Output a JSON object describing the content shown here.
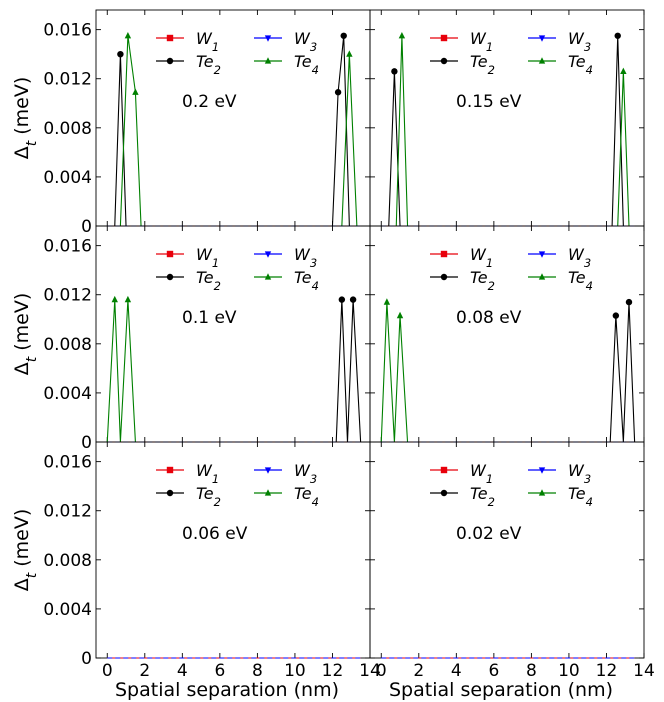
{
  "figure": {
    "ylabel_main": "Δ",
    "ylabel_sub": "t",
    "ylabel_unit": " (meV)",
    "xlabel": "Spatial separation (nm)"
  },
  "colors": {
    "W1": "#e8000b",
    "Te2": "#000000",
    "W3": "#0000ff",
    "Te4": "#008000"
  },
  "legend": [
    {
      "key": "W1",
      "base": "W",
      "sub": "1",
      "marker": "square"
    },
    {
      "key": "W3",
      "base": "W",
      "sub": "3",
      "marker": "tri-down"
    },
    {
      "key": "Te2",
      "base": "Te",
      "sub": "2",
      "marker": "circle"
    },
    {
      "key": "Te4",
      "base": "Te",
      "sub": "4",
      "marker": "tri-up"
    }
  ],
  "axes": {
    "xlim": [
      -0.6,
      14
    ],
    "ylim": [
      0,
      0.0176
    ],
    "xticks": [
      0,
      2,
      4,
      6,
      8,
      10,
      12,
      14
    ],
    "yticks": [
      0,
      0.004,
      0.008,
      0.012,
      0.016
    ],
    "ytick_labels": [
      "0",
      "0.004",
      "0.008",
      "0.012",
      "0.016"
    ]
  },
  "chart_data": [
    {
      "type": "line",
      "annotation": "0.2 eV",
      "series": [
        {
          "name": "W1",
          "x": [
            0,
            13.5
          ],
          "y": [
            0,
            0
          ]
        },
        {
          "name": "Te2",
          "x": [
            0,
            0.4,
            0.7,
            1.0,
            12.0,
            12.3,
            12.6,
            12.9,
            13.5
          ],
          "y": [
            0,
            0,
            0.014,
            0,
            0,
            0.0109,
            0.0155,
            0,
            0
          ]
        },
        {
          "name": "W3",
          "x": [
            0,
            13.5
          ],
          "y": [
            0,
            0
          ]
        },
        {
          "name": "Te4",
          "x": [
            0,
            0.7,
            1.1,
            1.5,
            1.8,
            12.5,
            12.9,
            13.3,
            13.5
          ],
          "y": [
            0,
            0,
            0.0155,
            0.0109,
            0,
            0,
            0.014,
            0,
            0
          ]
        }
      ]
    },
    {
      "type": "line",
      "annotation": "0.15 eV",
      "series": [
        {
          "name": "W1",
          "x": [
            0,
            13.5
          ],
          "y": [
            0,
            0
          ]
        },
        {
          "name": "Te2",
          "x": [
            0,
            0.4,
            0.7,
            1.0,
            12.3,
            12.6,
            12.9,
            13.5
          ],
          "y": [
            0,
            0,
            0.0126,
            0,
            0,
            0.0155,
            0,
            0
          ]
        },
        {
          "name": "W3",
          "x": [
            0,
            13.5
          ],
          "y": [
            0,
            0
          ]
        },
        {
          "name": "Te4",
          "x": [
            0,
            0.8,
            1.1,
            1.4,
            12.6,
            12.9,
            13.2,
            13.5
          ],
          "y": [
            0,
            0,
            0.0155,
            0,
            0,
            0.0126,
            0,
            0
          ]
        }
      ]
    },
    {
      "type": "line",
      "annotation": "0.1 eV",
      "series": [
        {
          "name": "W1",
          "x": [
            0,
            13.5
          ],
          "y": [
            0,
            0
          ]
        },
        {
          "name": "Te2",
          "x": [
            0,
            12.2,
            12.5,
            12.8,
            13.1,
            13.5
          ],
          "y": [
            0,
            0,
            0.0116,
            0,
            0.0116,
            0
          ]
        },
        {
          "name": "W3",
          "x": [
            0,
            13.5
          ],
          "y": [
            0,
            0
          ]
        },
        {
          "name": "Te4",
          "x": [
            0,
            0.4,
            0.7,
            1.1,
            1.5,
            13.5
          ],
          "y": [
            0,
            0.0116,
            0,
            0.0116,
            0,
            0
          ]
        }
      ]
    },
    {
      "type": "line",
      "annotation": "0.08 eV",
      "series": [
        {
          "name": "W1",
          "x": [
            0,
            13.5
          ],
          "y": [
            0,
            0
          ]
        },
        {
          "name": "Te2",
          "x": [
            0,
            12.2,
            12.5,
            12.9,
            13.2,
            13.5
          ],
          "y": [
            0,
            0,
            0.0103,
            0,
            0.0114,
            0
          ]
        },
        {
          "name": "W3",
          "x": [
            0,
            13.5
          ],
          "y": [
            0,
            0
          ]
        },
        {
          "name": "Te4",
          "x": [
            0,
            0.3,
            0.7,
            1.0,
            1.4,
            13.5
          ],
          "y": [
            0,
            0.0114,
            0,
            0.0103,
            0,
            0
          ]
        }
      ]
    },
    {
      "type": "line",
      "annotation": "0.06 eV",
      "series": [
        {
          "name": "W1",
          "x": [
            0,
            13.5
          ],
          "y": [
            0,
            0
          ]
        },
        {
          "name": "Te2",
          "x": [
            0,
            13.5
          ],
          "y": [
            0,
            0
          ]
        },
        {
          "name": "W3",
          "x": [
            0,
            13.5
          ],
          "y": [
            0,
            0
          ]
        },
        {
          "name": "Te4",
          "x": [
            0,
            13.5
          ],
          "y": [
            0,
            0
          ]
        }
      ]
    },
    {
      "type": "line",
      "annotation": "0.02 eV",
      "series": [
        {
          "name": "W1",
          "x": [
            0,
            13.5
          ],
          "y": [
            0,
            0
          ]
        },
        {
          "name": "Te2",
          "x": [
            0,
            13.5
          ],
          "y": [
            0,
            0
          ]
        },
        {
          "name": "W3",
          "x": [
            0,
            13.5
          ],
          "y": [
            0,
            0
          ]
        },
        {
          "name": "Te4",
          "x": [
            0,
            13.5
          ],
          "y": [
            0,
            0
          ]
        }
      ]
    }
  ]
}
